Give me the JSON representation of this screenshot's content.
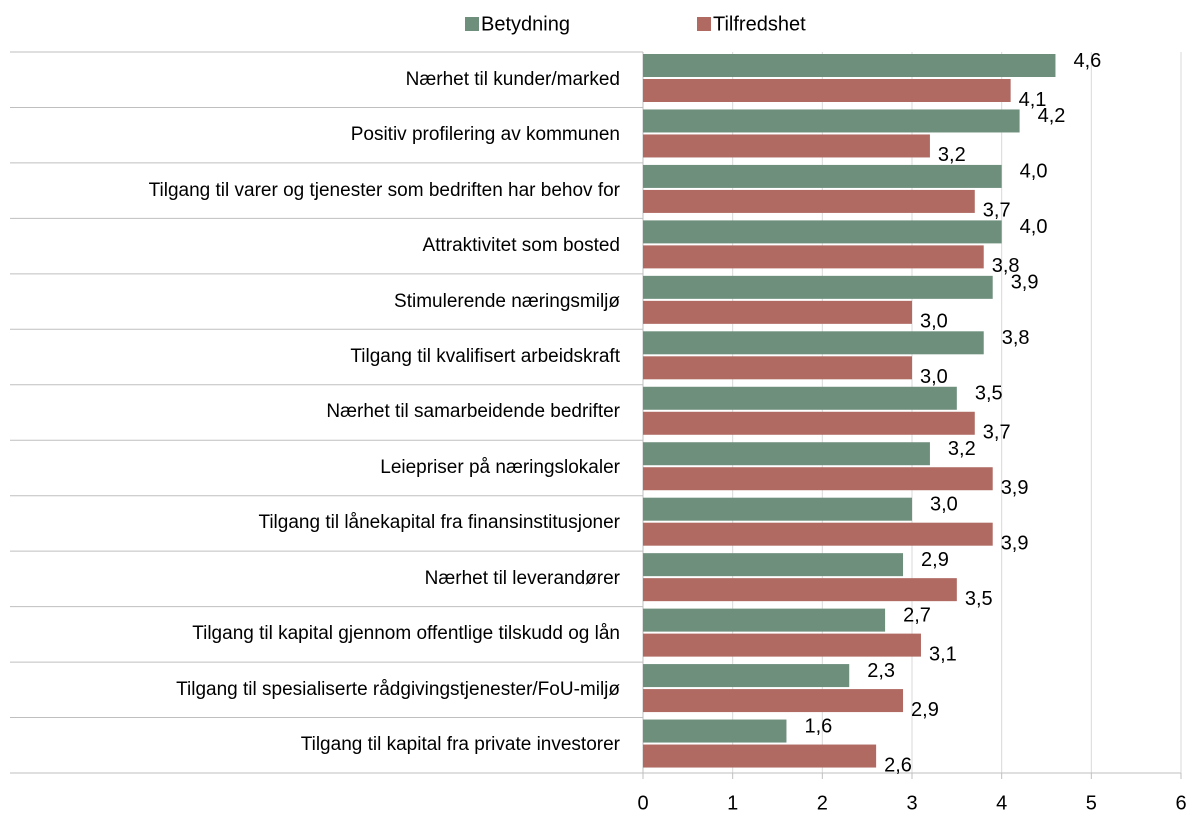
{
  "chart_data": {
    "type": "bar",
    "orientation": "horizontal",
    "categories": [
      "Nærhet til kunder/marked",
      "Positiv profilering av kommunen",
      "Tilgang til varer og tjenester som bedriften har behov for",
      "Attraktivitet som bosted",
      "Stimulerende næringsmiljø",
      "Tilgang til kvalifisert arbeidskraft",
      "Nærhet til samarbeidende bedrifter",
      "Leiepriser på næringslokaler",
      "Tilgang til lånekapital fra finansinstitusjoner",
      "Nærhet til leverandører",
      "Tilgang til kapital gjennom offentlige tilskudd og lån",
      "Tilgang til spesialiserte rådgivingstjenester/FoU-miljø",
      "Tilgang til kapital fra private investorer"
    ],
    "series": [
      {
        "name": "Betydning",
        "color": "#6e8f7c",
        "values": [
          4.6,
          4.2,
          4.0,
          4.0,
          3.9,
          3.8,
          3.5,
          3.2,
          3.0,
          2.9,
          2.7,
          2.3,
          1.6
        ],
        "value_labels": [
          "4,6",
          "4,2",
          "4,0",
          "4,0",
          "3,9",
          "3,8",
          "3,5",
          "3,2",
          "3,0",
          "2,9",
          "2,7",
          "2,3",
          "1,6"
        ]
      },
      {
        "name": "Tilfredshet",
        "color": "#b06a62",
        "values": [
          4.1,
          3.2,
          3.7,
          3.8,
          3.0,
          3.0,
          3.7,
          3.9,
          3.9,
          3.5,
          3.1,
          2.9,
          2.6
        ],
        "value_labels": [
          "4,1",
          "3,2",
          "3,7",
          "3,8",
          "3,0",
          "3,0",
          "3,7",
          "3,9",
          "3,9",
          "3,5",
          "3,1",
          "2,9",
          "2,6"
        ]
      }
    ],
    "xlim": [
      0,
      6
    ],
    "xticks": [
      0,
      1,
      2,
      3,
      4,
      5,
      6
    ],
    "grid": true,
    "legend": "top"
  }
}
